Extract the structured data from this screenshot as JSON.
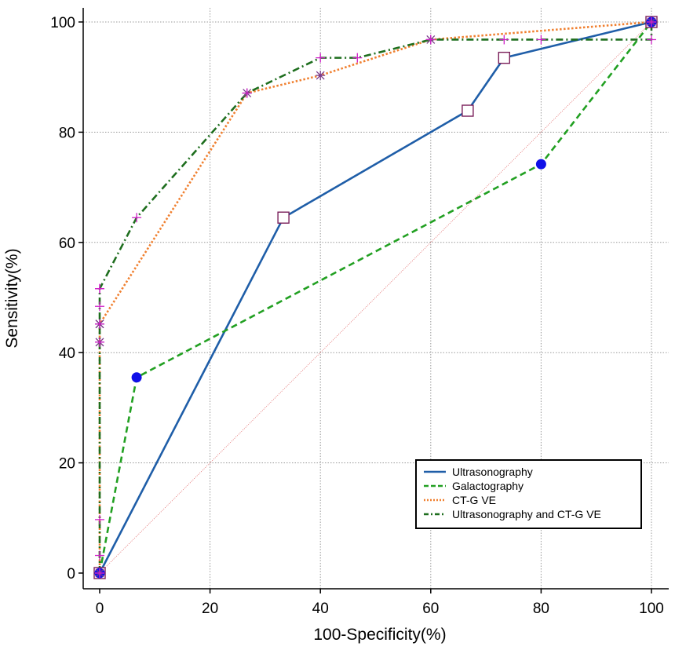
{
  "chart_data": {
    "type": "line",
    "title": "",
    "xlabel": "100-Specificity(%)",
    "ylabel": "Sensitivity(%)",
    "xlim": [
      -3,
      103
    ],
    "ylim": [
      -3,
      102
    ],
    "xticks": [
      0,
      20,
      40,
      60,
      80,
      100
    ],
    "yticks": [
      0,
      20,
      40,
      60,
      80,
      100
    ],
    "grid": true,
    "legend_position": "bottom-right",
    "reference_line": {
      "x": [
        0,
        100
      ],
      "y": [
        0,
        100
      ],
      "color": "#e06060"
    },
    "series": [
      {
        "name": "Ultrasonography",
        "color": "#1f5ea8",
        "dash": "solid",
        "marker": "open-square",
        "x": [
          0,
          33.3,
          66.7,
          73.3,
          100
        ],
        "y": [
          0,
          64.5,
          83.9,
          93.5,
          100
        ]
      },
      {
        "name": "Galactography",
        "color": "#22a022",
        "dash": "dashed",
        "marker": "filled-circle",
        "x": [
          0,
          6.7,
          80,
          100
        ],
        "y": [
          0,
          35.5,
          74.2,
          100
        ]
      },
      {
        "name": "CT-G VE",
        "color": "#f08030",
        "dash": "dotted",
        "marker": "asterisk",
        "x": [
          0,
          0,
          0,
          0,
          26.7,
          40,
          60,
          100
        ],
        "y": [
          0,
          41.9,
          45.2,
          45.2,
          87.1,
          90.3,
          96.8,
          100
        ]
      },
      {
        "name": "Ultrasonography and CT-G VE",
        "color": "#1e6e1e",
        "dash": "dashdot",
        "marker": "plus",
        "x": [
          0,
          0,
          0,
          0,
          0,
          0,
          0,
          0,
          6.7,
          26.7,
          40,
          46.7,
          60,
          73.3,
          80,
          100,
          100
        ],
        "y": [
          0,
          3.2,
          9.7,
          41.9,
          45.2,
          48.4,
          51.6,
          51.6,
          64.5,
          87.1,
          93.5,
          93.5,
          96.8,
          96.8,
          96.8,
          96.8,
          100
        ]
      }
    ]
  }
}
